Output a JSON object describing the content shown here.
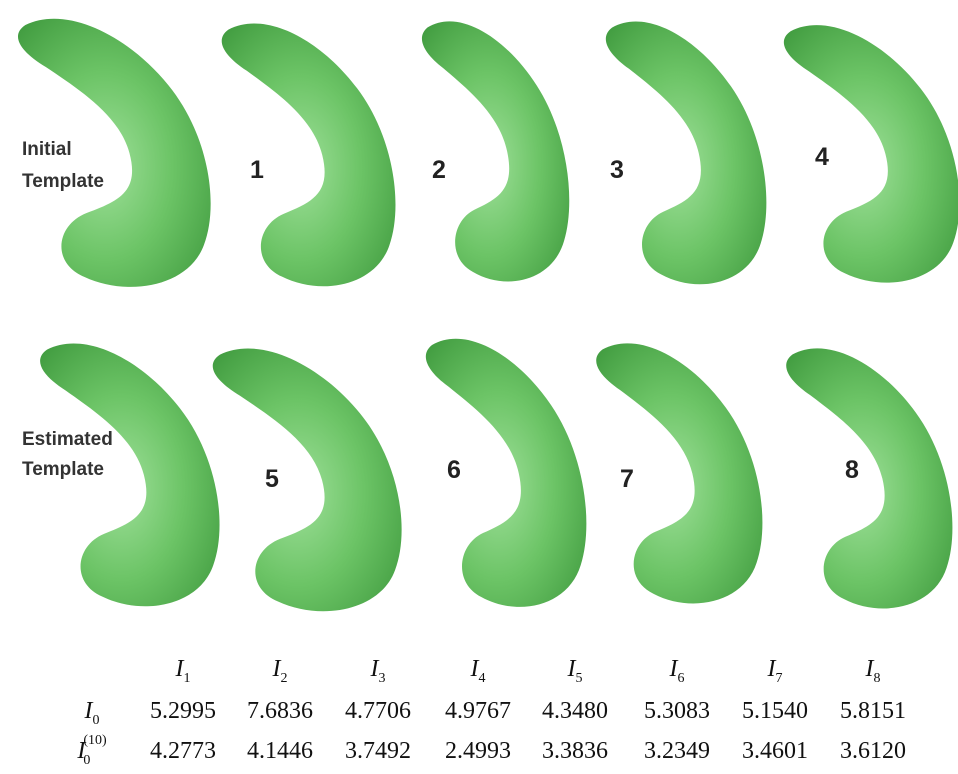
{
  "figure": {
    "initial_label": [
      "Initial",
      "Template"
    ],
    "estimated_label": [
      "Estimated",
      "Template"
    ],
    "shape_numbers": [
      "1",
      "2",
      "3",
      "4",
      "5",
      "6",
      "7",
      "8"
    ]
  },
  "table": {
    "columns": [
      {
        "base": "I",
        "sub": "1"
      },
      {
        "base": "I",
        "sub": "2"
      },
      {
        "base": "I",
        "sub": "3"
      },
      {
        "base": "I",
        "sub": "4"
      },
      {
        "base": "I",
        "sub": "5"
      },
      {
        "base": "I",
        "sub": "6"
      },
      {
        "base": "I",
        "sub": "7"
      },
      {
        "base": "I",
        "sub": "8"
      }
    ],
    "rows": [
      {
        "label": {
          "base": "I",
          "sub": "0"
        },
        "values": [
          "5.2995",
          "7.6836",
          "4.7706",
          "4.9767",
          "4.3480",
          "5.3083",
          "5.1540",
          "5.8151"
        ]
      },
      {
        "label": {
          "base": "I",
          "sub": "0",
          "sup": "(10)"
        },
        "values": [
          "4.2773",
          "4.1446",
          "3.7492",
          "2.4993",
          "3.3836",
          "3.2349",
          "3.4601",
          "3.6120"
        ]
      }
    ]
  }
}
